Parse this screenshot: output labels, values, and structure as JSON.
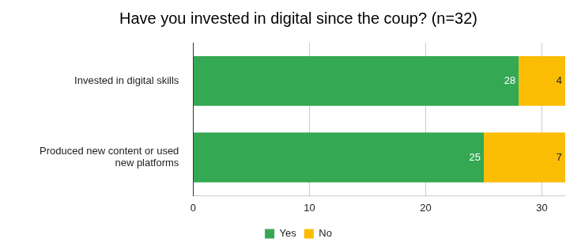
{
  "chart_data": {
    "type": "bar",
    "title": "Have you invested in digital since the coup? (n=32)",
    "orientation": "horizontal",
    "stacked": true,
    "data_labels": true,
    "grid": true,
    "legend": "bottom",
    "categories": [
      "Invested in digital skills",
      "Produced new content or used new platforms"
    ],
    "series": [
      {
        "name": "Yes",
        "color": "#34a853",
        "values": [
          28,
          25
        ]
      },
      {
        "name": "No",
        "color": "#fbbc04",
        "values": [
          4,
          7
        ]
      }
    ],
    "xlim": [
      0,
      32
    ],
    "xticks": [
      0,
      10,
      20,
      30
    ]
  }
}
